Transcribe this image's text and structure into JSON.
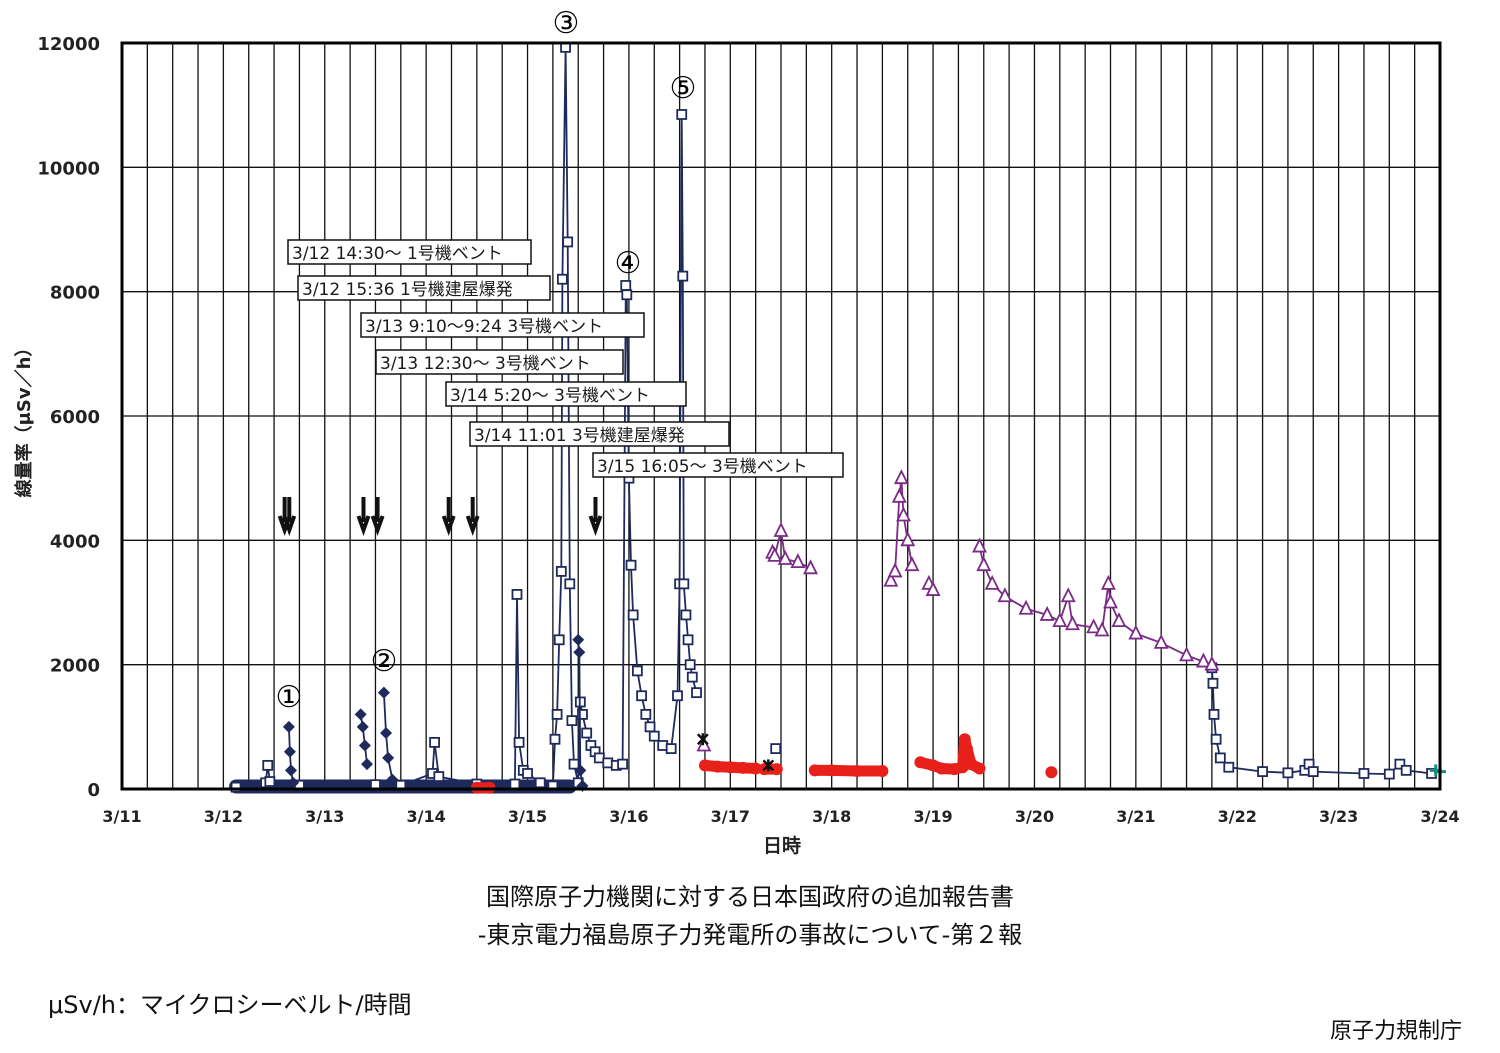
{
  "chart_data": {
    "type": "scatter",
    "title": "",
    "xlabel": "日時",
    "ylabel": "線量率（μSv／h）",
    "ylim": [
      0,
      12000
    ],
    "yticks": [
      "0",
      "2000",
      "4000",
      "6000",
      "8000",
      "10000",
      "12000"
    ],
    "xticks": [
      "3/11",
      "3/12",
      "3/13",
      "3/14",
      "3/15",
      "3/16",
      "3/17",
      "3/18",
      "3/19",
      "3/20",
      "3/21",
      "3/22",
      "3/23",
      "3/24"
    ],
    "grid": true,
    "colors": {
      "navy": "#1f2a5c",
      "red": "#e8201a",
      "purple": "#7b2a86",
      "teal": "#1a8a7a",
      "black": "#111111"
    },
    "series": [
      {
        "marker": "band",
        "color": "#1f2a5c",
        "points": [
          [
            "3/12 03:00",
            40
          ],
          [
            "3/15 10:00",
            40
          ]
        ]
      },
      {
        "marker": "square",
        "color": "#1f2a5c",
        "points": [
          [
            "3/12 03:00",
            30
          ],
          [
            "3/12 10:00",
            100
          ],
          [
            "3/12 10:30",
            380
          ],
          [
            "3/12 11:00",
            120
          ],
          [
            "3/12 18:00",
            60
          ],
          [
            "3/13 12:00",
            70
          ],
          [
            "3/13 18:00",
            60
          ],
          [
            "3/14 01:30",
            250
          ],
          [
            "3/14 02:00",
            750
          ],
          [
            "3/14 03:00",
            200
          ],
          [
            "3/14 12:00",
            80
          ],
          [
            "3/14 21:00",
            80
          ],
          [
            "3/14 21:30",
            3130
          ],
          [
            "3/14 22:00",
            750
          ],
          [
            "3/14 23:00",
            300
          ],
          [
            "3/15 00:00",
            250
          ],
          [
            "3/15 03:00",
            100
          ],
          [
            "3/15 06:00",
            50
          ],
          [
            "3/15 06:30",
            800
          ],
          [
            "3/15 07:00",
            1200
          ],
          [
            "3/15 07:30",
            2400
          ],
          [
            "3/15 08:00",
            3500
          ],
          [
            "3/15 08:15",
            8200
          ],
          [
            "3/15 09:00",
            11930
          ],
          [
            "3/15 09:30",
            8800
          ],
          [
            "3/15 10:00",
            3300
          ],
          [
            "3/15 10:30",
            1100
          ],
          [
            "3/15 11:00",
            400
          ],
          [
            "3/15 12:00",
            100
          ],
          [
            "3/15 12:30",
            1400
          ],
          [
            "3/15 13:00",
            1200
          ],
          [
            "3/15 14:00",
            900
          ],
          [
            "3/15 15:00",
            700
          ],
          [
            "3/15 16:00",
            600
          ],
          [
            "3/15 17:00",
            500
          ],
          [
            "3/15 19:00",
            420
          ],
          [
            "3/15 21:00",
            380
          ],
          [
            "3/15 22:30",
            400
          ],
          [
            "3/15 23:15",
            8100
          ],
          [
            "3/15 23:30",
            7950
          ],
          [
            "3/16 00:00",
            5000
          ],
          [
            "3/16 00:30",
            3600
          ],
          [
            "3/16 01:00",
            2800
          ],
          [
            "3/16 02:00",
            1900
          ],
          [
            "3/16 03:00",
            1500
          ],
          [
            "3/16 04:00",
            1200
          ],
          [
            "3/16 05:00",
            1000
          ],
          [
            "3/16 06:00",
            850
          ],
          [
            "3/16 08:00",
            700
          ],
          [
            "3/16 10:00",
            650
          ],
          [
            "3/16 11:30",
            1500
          ],
          [
            "3/16 12:00",
            3300
          ],
          [
            "3/16 12:30",
            10850
          ],
          [
            "3/16 12:45",
            8250
          ],
          [
            "3/16 13:00",
            3300
          ],
          [
            "3/16 13:30",
            2800
          ],
          [
            "3/16 14:00",
            2400
          ],
          [
            "3/16 14:30",
            2000
          ],
          [
            "3/16 15:00",
            1800
          ],
          [
            "3/16 16:00",
            1550
          ],
          null,
          [
            "3/17 10:45",
            650
          ],
          null,
          [
            "3/21 18:00",
            1950
          ],
          [
            "3/21 18:15",
            1700
          ],
          [
            "3/21 18:30",
            1200
          ],
          [
            "3/21 19:00",
            800
          ],
          [
            "3/21 20:00",
            500
          ],
          [
            "3/21 22:00",
            350
          ],
          [
            "3/22 06:00",
            280
          ],
          [
            "3/22 12:00",
            260
          ],
          [
            "3/22 16:00",
            300
          ],
          [
            "3/22 17:00",
            400
          ],
          [
            "3/22 18:00",
            280
          ],
          [
            "3/23 06:00",
            250
          ],
          [
            "3/23 12:00",
            240
          ],
          [
            "3/23 14:30",
            400
          ],
          [
            "3/23 16:00",
            300
          ],
          [
            "3/23 22:00",
            250
          ]
        ]
      },
      {
        "marker": "diamond",
        "color": "#1f2a5c",
        "points": [
          [
            "3/12 15:30",
            1000
          ],
          [
            "3/12 15:45",
            600
          ],
          [
            "3/12 16:00",
            300
          ],
          [
            "3/12 16:30",
            100
          ],
          null,
          [
            "3/13 08:30",
            1200
          ],
          [
            "3/13 09:00",
            1000
          ],
          [
            "3/13 09:30",
            700
          ],
          [
            "3/13 10:00",
            400
          ],
          null,
          [
            "3/13 14:00",
            1550
          ],
          [
            "3/13 14:30",
            900
          ],
          [
            "3/13 15:00",
            500
          ],
          [
            "3/13 16:00",
            150
          ],
          null,
          [
            "3/15 12:00",
            2400
          ],
          [
            "3/15 12:15",
            2200
          ],
          [
            "3/15 12:30",
            300
          ],
          [
            "3/15 13:00",
            50
          ]
        ]
      },
      {
        "marker": "circle",
        "color": "#e8201a",
        "points": [
          [
            "3/14 12:00",
            20
          ],
          [
            "3/14 15:00",
            20
          ],
          null,
          [
            "3/16 18:00",
            380
          ],
          [
            "3/16 21:00",
            360
          ],
          [
            "3/17 00:00",
            350
          ],
          [
            "3/17 03:00",
            340
          ],
          [
            "3/17 06:00",
            330
          ],
          null,
          [
            "3/17 08:00",
            320
          ],
          [
            "3/17 11:00",
            320
          ],
          null,
          [
            "3/17 20:00",
            300
          ],
          [
            "3/18 00:00",
            300
          ],
          [
            "3/18 06:00",
            290
          ],
          [
            "3/18 12:00",
            290
          ],
          null,
          [
            "3/18 21:00",
            430
          ],
          [
            "3/19 00:00",
            380
          ],
          [
            "3/19 02:00",
            330
          ],
          [
            "3/19 05:00",
            320
          ],
          [
            "3/19 07:00",
            350
          ],
          [
            "3/19 07:30",
            800
          ],
          [
            "3/19 08:00",
            650
          ],
          [
            "3/19 09:00",
            400
          ],
          [
            "3/19 11:00",
            330
          ],
          null,
          [
            "3/20 04:00",
            270
          ]
        ]
      },
      {
        "marker": "triangle",
        "color": "#7b2a86",
        "points": [
          [
            "3/16 17:45",
            700
          ],
          null,
          [
            "3/17 10:00",
            3800
          ],
          [
            "3/17 10:30",
            3750
          ],
          [
            "3/17 12:00",
            4150
          ],
          [
            "3/17 13:00",
            3700
          ],
          [
            "3/17 16:00",
            3650
          ],
          [
            "3/17 19:00",
            3550
          ],
          null,
          [
            "3/18 14:00",
            3350
          ],
          [
            "3/18 15:00",
            3500
          ],
          [
            "3/18 16:00",
            4700
          ],
          [
            "3/18 16:30",
            5000
          ],
          [
            "3/18 17:00",
            4400
          ],
          [
            "3/18 18:00",
            4000
          ],
          [
            "3/18 19:00",
            3600
          ],
          null,
          [
            "3/18 23:00",
            3300
          ],
          [
            "3/19 00:00",
            3200
          ],
          null,
          [
            "3/19 11:00",
            3900
          ],
          [
            "3/19 12:00",
            3600
          ],
          [
            "3/19 14:00",
            3300
          ],
          [
            "3/19 17:00",
            3100
          ],
          [
            "3/19 22:00",
            2900
          ],
          [
            "3/20 03:00",
            2800
          ],
          [
            "3/20 06:00",
            2700
          ],
          [
            "3/20 08:00",
            3100
          ],
          [
            "3/20 09:00",
            2650
          ],
          [
            "3/20 14:00",
            2600
          ],
          [
            "3/20 16:00",
            2550
          ],
          [
            "3/20 17:30",
            3300
          ],
          [
            "3/20 18:00",
            3000
          ],
          [
            "3/20 20:00",
            2700
          ],
          [
            "3/21 00:00",
            2500
          ],
          [
            "3/21 06:00",
            2350
          ],
          [
            "3/21 12:00",
            2150
          ],
          [
            "3/21 16:00",
            2050
          ],
          [
            "3/21 18:00",
            2000
          ]
        ]
      },
      {
        "marker": "star",
        "color": "#111111",
        "points": [
          [
            "3/16 17:30",
            800
          ],
          null,
          [
            "3/17 09:00",
            380
          ]
        ]
      },
      {
        "marker": "plus",
        "color": "#1a8a7a",
        "points": [
          [
            "3/23 23:00",
            300
          ],
          [
            "3/24 00:00",
            280
          ]
        ]
      }
    ],
    "peaks": [
      {
        "label": "①",
        "time": "3/12 15:30",
        "value": 1000
      },
      {
        "label": "②",
        "time": "3/13 14:00",
        "value": 1550
      },
      {
        "label": "③",
        "time": "3/15 09:00",
        "value": 11930
      },
      {
        "label": "④",
        "time": "3/15 23:15",
        "value": 8100
      },
      {
        "label": "⑤",
        "time": "3/16 12:30",
        "value": 10850
      }
    ],
    "events": [
      {
        "time": "3/12 14:30",
        "label": "3/12 14:30～ 1号機ベント"
      },
      {
        "time": "3/12 15:36",
        "label": "3/12 15:36 1号機建屋爆発"
      },
      {
        "time": "3/13 09:10",
        "label": "3/13 9:10～9:24 3号機ベント"
      },
      {
        "time": "3/13 12:30",
        "label": "3/13 12:30～ 3号機ベント"
      },
      {
        "time": "3/14 05:20",
        "label": "3/14 5:20～ 3号機ベント"
      },
      {
        "time": "3/14 11:01",
        "label": "3/14 11:01 3号機建屋爆発"
      },
      {
        "time": "3/15 16:05",
        "label": "3/15 16:05～ 3号機ベント"
      }
    ]
  },
  "caption": {
    "line1": "国際原子力機関に対する日本国政府の追加報告書",
    "line2": "-東京電力福島原子力発電所の事故について-第２報"
  },
  "footnote": "μSv/h：マイクロシーベルト/時間",
  "source": "原子力規制庁"
}
